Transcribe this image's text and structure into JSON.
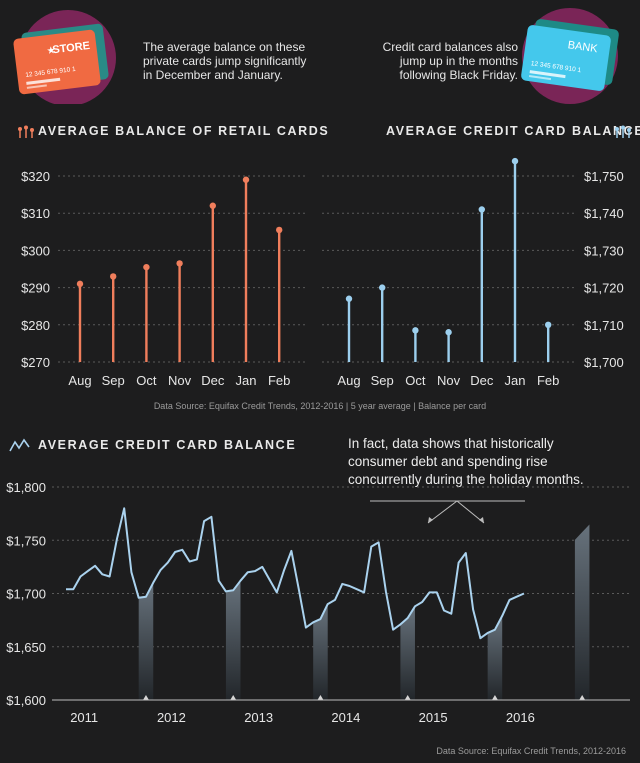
{
  "intro": {
    "left_text": "The average balance on these private cards jump significantly in December and January.",
    "right_text": "Credit card balances also jump up in the months following Black Friday.",
    "store_card": {
      "label": "STORE",
      "number": "12 345 678 910 1"
    },
    "bank_card": {
      "label": "BANK",
      "number": "12 345 678 910 1"
    }
  },
  "top_source": "Data Source: Equifax Credit Trends, 2012-2016 | 5 year average | Balance per card",
  "callout": "In fact, data shows that historically consumer debt and spending rise concurrently during the holiday months.",
  "bottom_source": "Data Source: Equifax Credit Trends, 2012-2016",
  "colors": {
    "orange": "#f07e5c",
    "blue": "#9ccfee",
    "line": "#aad2ee",
    "background": "#1d1d1e"
  },
  "icons": [
    "retail-lollipop-icon",
    "credit-lollipop-icon",
    "line-chart-icon",
    "store-card-icon",
    "bank-card-icon"
  ],
  "chart_data": [
    {
      "type": "bar",
      "title": "AVERAGE BALANCE OF RETAIL CARDS",
      "style": "lollipop",
      "categories": [
        "Aug",
        "Sep",
        "Oct",
        "Nov",
        "Dec",
        "Jan",
        "Feb"
      ],
      "values": [
        291,
        293,
        295.5,
        296.5,
        312,
        319,
        305.5
      ],
      "ylim": [
        270,
        320
      ],
      "yticks": [
        270,
        280,
        290,
        300,
        310,
        320
      ],
      "ytick_labels": [
        "$270",
        "$280",
        "$290",
        "$300",
        "$310",
        "$320"
      ],
      "grid": true
    },
    {
      "type": "bar",
      "title": "AVERAGE CREDIT CARD BALANCE",
      "style": "lollipop",
      "categories": [
        "Aug",
        "Sep",
        "Oct",
        "Nov",
        "Dec",
        "Jan",
        "Feb"
      ],
      "values": [
        1717,
        1720,
        1708.5,
        1708,
        1741,
        1754,
        1710
      ],
      "ylim": [
        1700,
        1750
      ],
      "yticks": [
        1700,
        1710,
        1720,
        1730,
        1740,
        1750
      ],
      "ytick_labels": [
        "$1,700",
        "$1,710",
        "$1,720",
        "$1,730",
        "$1,740",
        "$1,750"
      ],
      "grid": true
    },
    {
      "type": "line",
      "title": "AVERAGE CREDIT CARD BALANCE",
      "x_start": "2011-01",
      "xtick_labels": [
        "2011",
        "2012",
        "2013",
        "2014",
        "2015",
        "2016"
      ],
      "values": [
        1704,
        1704,
        1716,
        1721,
        1726,
        1718,
        1716,
        1751,
        1780,
        1720,
        1696,
        1697,
        1710,
        1722,
        1729,
        1739,
        1741,
        1730,
        1732,
        1768,
        1772,
        1712,
        1702,
        1703,
        1712,
        1720,
        1721,
        1725,
        1713,
        1701,
        1722,
        1740,
        1705,
        1668,
        1673,
        1676,
        1690,
        1694,
        1709,
        1707,
        1704,
        1701,
        1744,
        1748,
        1702,
        1666,
        1671,
        1677,
        1688,
        1692,
        1701,
        1701,
        1684,
        1681,
        1729,
        1738,
        1685,
        1658,
        1663,
        1666,
        1679,
        1694,
        1697,
        1700
      ],
      "holiday_shading": [
        "2011-12",
        "2012-12",
        "2013-12",
        "2014-12",
        "2015-12",
        "2016-12"
      ],
      "ylim": [
        1600,
        1800
      ],
      "yticks": [
        1600,
        1650,
        1700,
        1750,
        1800
      ],
      "ytick_labels": [
        "$1,600",
        "$1,650",
        "$1,700",
        "$1,750",
        "$1,800"
      ],
      "grid": true
    }
  ]
}
